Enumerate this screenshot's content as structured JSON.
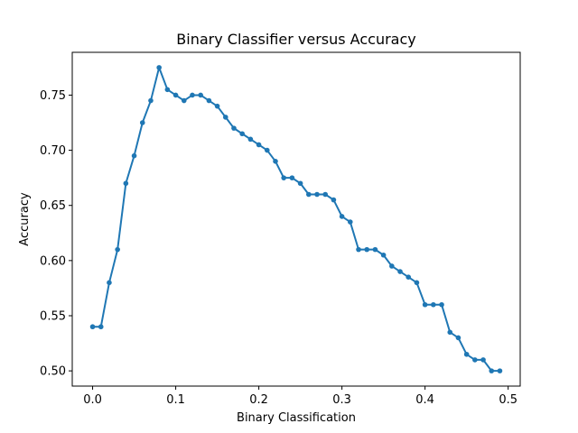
{
  "chart_data": {
    "type": "line",
    "title": "Binary Classifier versus Accuracy",
    "xlabel": "Binary Classification",
    "ylabel": "Accuracy",
    "xlim": [
      -0.0245,
      0.5145
    ],
    "ylim": [
      0.4862,
      0.7888
    ],
    "xticks": [
      0.0,
      0.1,
      0.2,
      0.3,
      0.4,
      0.5
    ],
    "xtick_labels": [
      "0.0",
      "0.1",
      "0.2",
      "0.3",
      "0.4",
      "0.5"
    ],
    "yticks": [
      0.5,
      0.55,
      0.6,
      0.65,
      0.7,
      0.75
    ],
    "ytick_labels": [
      "0.50",
      "0.55",
      "0.60",
      "0.65",
      "0.70",
      "0.75"
    ],
    "grid": false,
    "marker": "circle",
    "series": [
      {
        "color": "#1f77b4",
        "x": [
          0.0,
          0.01,
          0.02,
          0.03,
          0.04,
          0.05,
          0.06,
          0.07,
          0.08,
          0.09,
          0.1,
          0.11,
          0.12,
          0.13,
          0.14,
          0.15,
          0.16,
          0.17,
          0.18,
          0.19,
          0.2,
          0.21,
          0.22,
          0.23,
          0.24,
          0.25,
          0.26,
          0.27,
          0.28,
          0.29,
          0.3,
          0.31,
          0.32,
          0.33,
          0.34,
          0.35,
          0.36,
          0.37,
          0.38,
          0.39,
          0.4,
          0.41,
          0.42,
          0.43,
          0.44,
          0.45,
          0.46,
          0.47,
          0.48,
          0.49
        ],
        "y": [
          0.54,
          0.54,
          0.58,
          0.61,
          0.67,
          0.695,
          0.725,
          0.745,
          0.775,
          0.755,
          0.75,
          0.745,
          0.75,
          0.75,
          0.745,
          0.74,
          0.73,
          0.72,
          0.715,
          0.71,
          0.705,
          0.7,
          0.69,
          0.675,
          0.675,
          0.67,
          0.66,
          0.66,
          0.66,
          0.655,
          0.64,
          0.635,
          0.61,
          0.61,
          0.61,
          0.605,
          0.595,
          0.59,
          0.585,
          0.58,
          0.56,
          0.56,
          0.56,
          0.535,
          0.53,
          0.515,
          0.51,
          0.51,
          0.5,
          0.5
        ]
      }
    ]
  }
}
